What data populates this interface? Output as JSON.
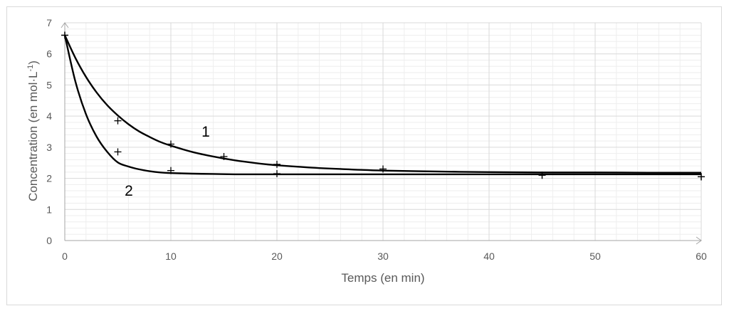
{
  "chart_data": {
    "type": "scatter",
    "title": "",
    "xlabel": "Temps (en min)",
    "ylabel_main": "Concentration (en mol·L",
    "ylabel_sup": "-1",
    "ylabel_end": ")",
    "xlim": [
      0,
      60
    ],
    "ylim": [
      0,
      7
    ],
    "x_ticks": [
      0,
      10,
      20,
      30,
      40,
      50,
      60
    ],
    "y_ticks": [
      0,
      1,
      2,
      3,
      4,
      5,
      6,
      7
    ],
    "grid": true,
    "curve_labels": [
      "1",
      "2"
    ],
    "series": [
      {
        "label": "1",
        "points": [
          {
            "x": 0,
            "y": 6.6
          },
          {
            "x": 5,
            "y": 3.85
          },
          {
            "x": 10,
            "y": 3.1
          },
          {
            "x": 15,
            "y": 2.7
          },
          {
            "x": 20,
            "y": 2.45
          },
          {
            "x": 30,
            "y": 2.3
          },
          {
            "x": 45,
            "y": 2.1
          },
          {
            "x": 60,
            "y": 2.05
          }
        ],
        "curve_x": [
          0,
          1,
          2,
          3,
          4,
          5,
          6,
          7,
          8,
          9,
          10,
          12,
          14,
          16,
          18,
          20,
          23,
          26,
          30,
          35,
          40,
          45,
          50,
          55,
          60
        ],
        "curve_y": [
          6.6,
          5.87,
          5.26,
          4.76,
          4.35,
          4.02,
          3.74,
          3.51,
          3.33,
          3.17,
          3.05,
          2.85,
          2.7,
          2.58,
          2.49,
          2.42,
          2.35,
          2.3,
          2.25,
          2.22,
          2.2,
          2.19,
          2.19,
          2.18,
          2.18
        ]
      },
      {
        "label": "2",
        "points": [
          {
            "x": 0,
            "y": 6.6
          },
          {
            "x": 5,
            "y": 2.85
          },
          {
            "x": 10,
            "y": 2.25
          },
          {
            "x": 20,
            "y": 2.15
          },
          {
            "x": 45,
            "y": 2.1
          },
          {
            "x": 60,
            "y": 2.05
          }
        ],
        "curve_x": [
          0,
          1,
          2,
          3,
          4,
          5,
          6,
          7,
          8,
          9,
          10,
          12,
          14,
          16,
          18,
          20,
          25,
          30,
          40,
          50,
          60
        ],
        "curve_y": [
          6.6,
          5.11,
          4.06,
          3.34,
          2.85,
          2.51,
          2.38,
          2.29,
          2.23,
          2.19,
          2.17,
          2.15,
          2.14,
          2.13,
          2.13,
          2.13,
          2.13,
          2.13,
          2.13,
          2.13,
          2.13
        ]
      }
    ]
  }
}
